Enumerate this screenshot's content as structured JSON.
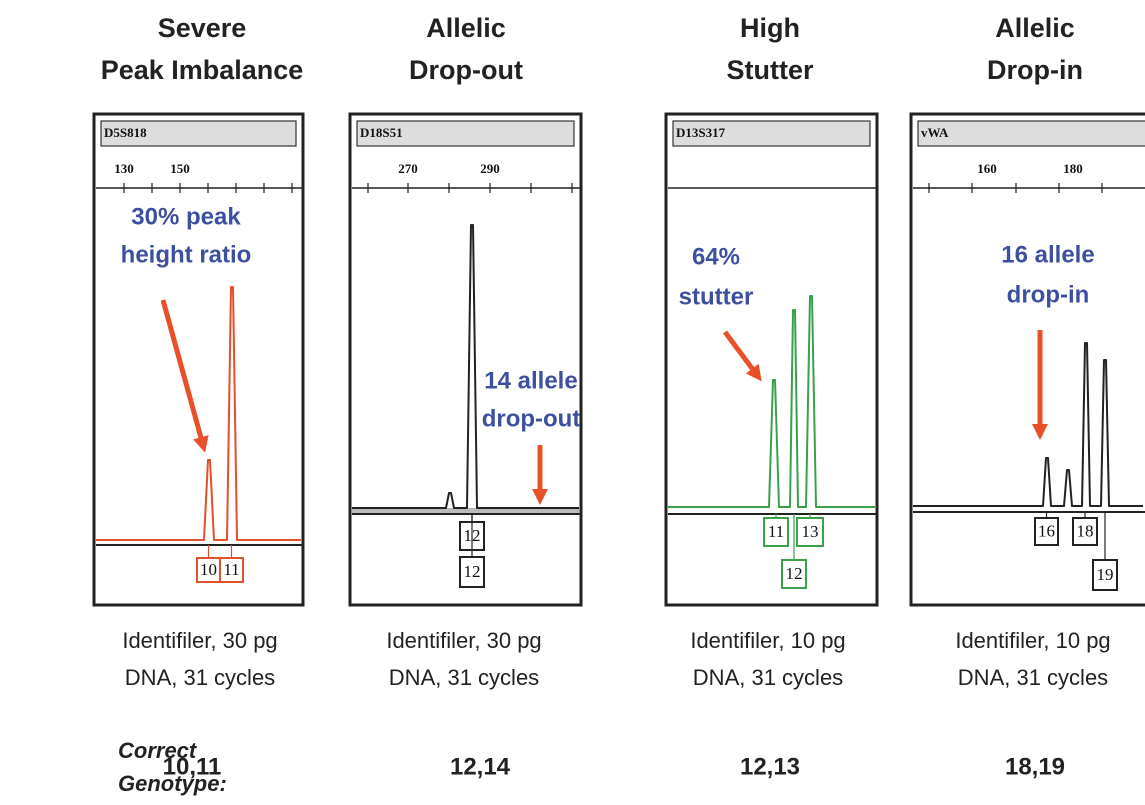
{
  "panels": [
    {
      "title": [
        "Severe",
        "Peak Imbalance"
      ],
      "locus": "D5S818",
      "scale": [
        "130",
        "150"
      ],
      "annotation": [
        "30% peak",
        "height ratio"
      ],
      "alleles": [
        "10",
        "11"
      ],
      "caption": [
        "Identifiler, 30 pg",
        "DNA, 31 cycles"
      ],
      "genotype": "10,11"
    },
    {
      "title": [
        "Allelic",
        "Drop-out"
      ],
      "locus": "D18S51",
      "scale": [
        "270",
        "290"
      ],
      "annotation": [
        "14 allele",
        "drop-out"
      ],
      "alleles": [
        "12",
        "12"
      ],
      "caption": [
        "Identifiler, 30 pg",
        "DNA, 31 cycles"
      ],
      "genotype": "12,14"
    },
    {
      "title": [
        "High",
        "Stutter"
      ],
      "locus": "D13S317",
      "scale": [],
      "annotation": [
        "64%",
        "stutter"
      ],
      "alleles": [
        "11",
        "13",
        "12"
      ],
      "caption": [
        "Identifiler, 10 pg",
        "DNA, 31 cycles"
      ],
      "genotype": "12,13"
    },
    {
      "title": [
        "Allelic",
        "Drop-in"
      ],
      "locus": "vWA",
      "scale": [
        "160",
        "180"
      ],
      "annotation": [
        "16 allele",
        "drop-in"
      ],
      "alleles": [
        "16",
        "18",
        "19"
      ],
      "caption": [
        "Identifiler, 10 pg",
        "DNA, 31 cycles"
      ],
      "genotype": "18,19"
    }
  ],
  "genotype_label": [
    "Correct",
    "Genotype:"
  ]
}
